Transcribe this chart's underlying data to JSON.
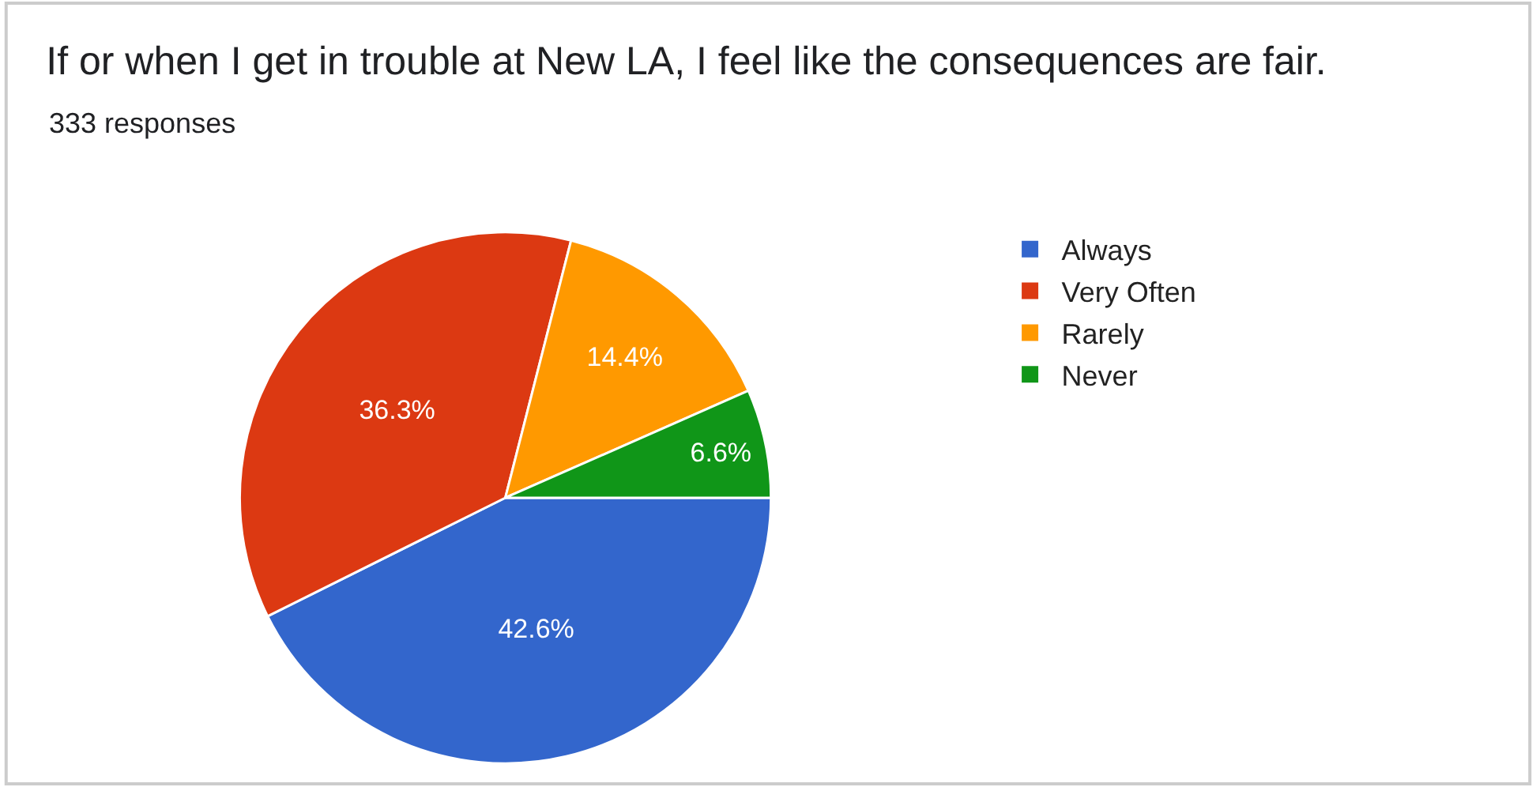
{
  "chart_data": {
    "type": "pie",
    "title": "If or when I get in trouble at New LA, I feel like the consequences are fair.",
    "subtitle": "333 responses",
    "categories": [
      "Always",
      "Very Often",
      "Rarely",
      "Never"
    ],
    "values": [
      42.6,
      36.3,
      14.4,
      6.6
    ],
    "colors": [
      "#3366cc",
      "#dc3912",
      "#ff9900",
      "#109618"
    ],
    "value_labels": [
      "42.6%",
      "36.3%",
      "14.4%",
      "6.6%"
    ],
    "legend": "top right"
  }
}
